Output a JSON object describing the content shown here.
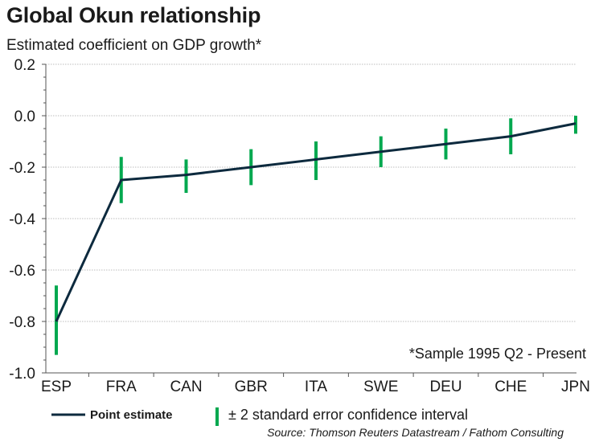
{
  "header": {
    "title": "Global Okun relationship",
    "subtitle": "Estimated coefficient on GDP growth*"
  },
  "chart_data": {
    "type": "line",
    "categories": [
      "ESP",
      "FRA",
      "CAN",
      "GBR",
      "ITA",
      "SWE",
      "DEU",
      "CHE",
      "JPN"
    ],
    "series": [
      {
        "name": "Point estimate",
        "values": [
          -0.8,
          -0.25,
          -0.23,
          -0.2,
          -0.17,
          -0.14,
          -0.11,
          -0.08,
          -0.03
        ]
      }
    ],
    "intervals": {
      "name": "± 2 standard error confidence interval",
      "low": [
        -0.93,
        -0.34,
        -0.3,
        -0.27,
        -0.25,
        -0.2,
        -0.17,
        -0.15,
        -0.07
      ],
      "high": [
        -0.66,
        -0.16,
        -0.17,
        -0.13,
        -0.1,
        -0.08,
        -0.05,
        -0.01,
        0.0
      ]
    },
    "ylim": [
      -1.0,
      0.2
    ],
    "yticks": [
      "0.2",
      "0.0",
      "-0.2",
      "-0.4",
      "-0.6",
      "-0.8",
      "-1.0"
    ],
    "ytick_values": [
      0.2,
      0.0,
      -0.2,
      -0.4,
      -0.6,
      -0.8,
      -1.0
    ],
    "grid": true,
    "legend_position": "bottom",
    "annotation": "*Sample 1995 Q2 - Present",
    "colors": {
      "line": "#0d2a3e",
      "interval": "#00a84f",
      "grid": "#bdbdbd",
      "axis": "#555555"
    }
  },
  "footer": {
    "source": "Source: Thomson Reuters Datastream / Fathom Consulting"
  }
}
